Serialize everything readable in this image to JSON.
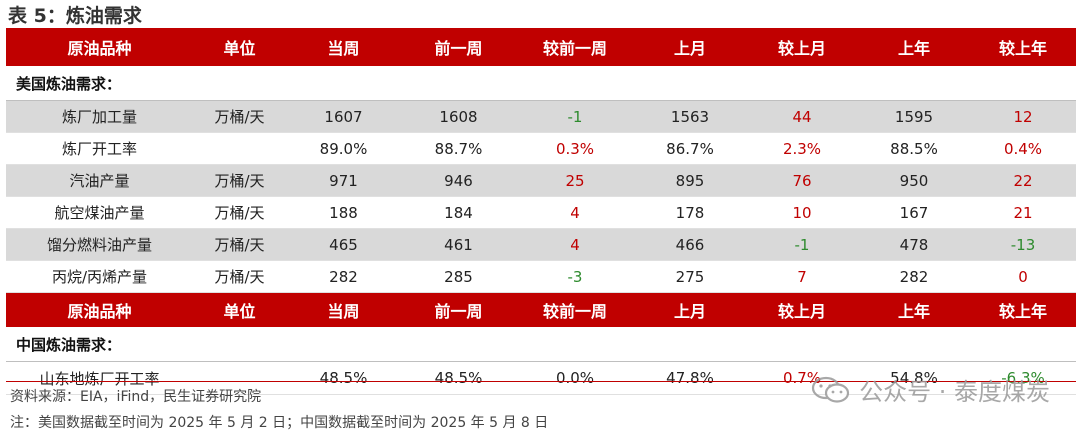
{
  "title": "表 5：炼油需求",
  "header": [
    "原油品种",
    "单位",
    "当周",
    "前一周",
    "较前一周",
    "上月",
    "较上月",
    "上年",
    "较上年"
  ],
  "us_section": "美国炼油需求：",
  "us_rows": [
    {
      "name": "炼厂加工量",
      "unit": "万桶/天",
      "week": "1607",
      "prev": "1608",
      "wow": "-1",
      "month": "1563",
      "mom": "44",
      "year": "1595",
      "yoy": "12"
    },
    {
      "name": "炼厂开工率",
      "unit": "",
      "week": "89.0%",
      "prev": "88.7%",
      "wow": "0.3%",
      "month": "86.7%",
      "mom": "2.3%",
      "year": "88.5%",
      "yoy": "0.4%"
    },
    {
      "name": "汽油产量",
      "unit": "万桶/天",
      "week": "971",
      "prev": "946",
      "wow": "25",
      "month": "895",
      "mom": "76",
      "year": "950",
      "yoy": "22"
    },
    {
      "name": "航空煤油产量",
      "unit": "万桶/天",
      "week": "188",
      "prev": "184",
      "wow": "4",
      "month": "178",
      "mom": "10",
      "year": "167",
      "yoy": "21"
    },
    {
      "name": "馏分燃料油产量",
      "unit": "万桶/天",
      "week": "465",
      "prev": "461",
      "wow": "4",
      "month": "466",
      "mom": "-1",
      "year": "478",
      "yoy": "-13"
    },
    {
      "name": "丙烷/丙烯产量",
      "unit": "万桶/天",
      "week": "282",
      "prev": "285",
      "wow": "-3",
      "month": "275",
      "mom": "7",
      "year": "282",
      "yoy": "0"
    }
  ],
  "cn_section": "中国炼油需求：",
  "cn_rows": [
    {
      "name": "山东地炼厂开工率",
      "unit": "",
      "week": "48.5%",
      "prev": "48.5%",
      "wow": "0.0%",
      "month": "47.8%",
      "mom": "0.7%",
      "year": "54.8%",
      "yoy": "-6.3%"
    }
  ],
  "source": "资料来源：EIA，iFind，民生证券研究院",
  "note": "注：美国数据截至时间为 2025 年 5 月 2 日；中国数据截至时间为 2025 年 5 月 8 日",
  "watermark": "公众号 · 泰度煤炭",
  "colors": {
    "header_bg": "#c00000",
    "positive": "#c00000",
    "negative": "#2e8b2e",
    "shade": "#d9d9d9"
  }
}
